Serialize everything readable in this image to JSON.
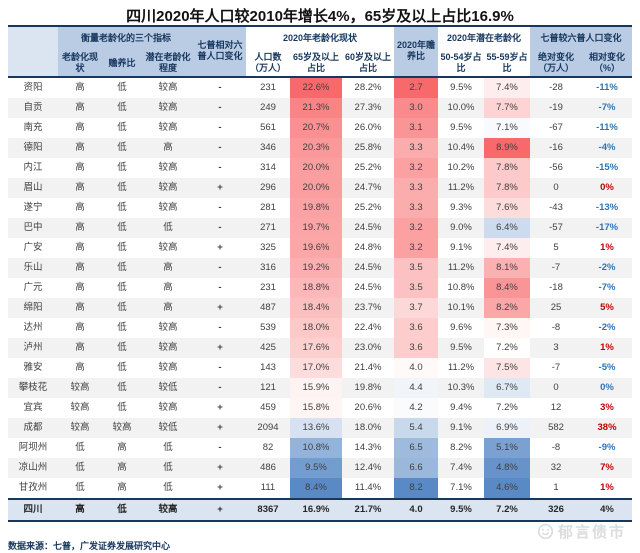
{
  "title": "四川2020年人口较2010年增长4%，65岁及以上占比16.9%",
  "chart_data": {
    "type": "table",
    "title": "四川2020年人口较2010年增长4%，65岁及以上占比16.9%",
    "header": {
      "corner": "",
      "group_indicators": "衡量老龄化的三个指标",
      "col_aging_status": "老龄化现状",
      "col_support_ratio": "赡养比",
      "col_potential_aging": "潜在老龄化程度",
      "col_census_change": "七普相对六普人口变化",
      "group_aging_2020": "2020年老龄化现状",
      "col_population": "人口数（万人）",
      "col_65_plus": "65岁及以上占比",
      "col_60_plus": "60岁及以上占比",
      "col_support_2020": "2020年赡养比",
      "group_potential_2020": "2020年潜在老龄化",
      "col_50_54": "50-54岁占比",
      "col_55_59": "55-59岁占比",
      "group_census_change_2": "七普较六普人口变化",
      "col_abs_change": "绝对变化（万人）",
      "col_rel_change": "相对变化（%）"
    },
    "rows": [
      {
        "name": "资阳",
        "aging": "高",
        "support": "低",
        "potential": "较高",
        "census_change": "-",
        "pop": "231",
        "p65": "22.6%",
        "p60": "28.2%",
        "ratio": "2.7",
        "p50_54": "9.5%",
        "p55_59": "7.4%",
        "abs": "-28",
        "rel": "-11%",
        "rel_color": "blue"
      },
      {
        "name": "自贡",
        "aging": "高",
        "support": "低",
        "potential": "较高",
        "census_change": "-",
        "pop": "249",
        "p65": "21.3%",
        "p60": "27.3%",
        "ratio": "3.0",
        "p50_54": "10.0%",
        "p55_59": "7.7%",
        "abs": "-19",
        "rel": "-7%",
        "rel_color": "blue"
      },
      {
        "name": "南充",
        "aging": "高",
        "support": "低",
        "potential": "较高",
        "census_change": "-",
        "pop": "561",
        "p65": "20.7%",
        "p60": "26.0%",
        "ratio": "3.1",
        "p50_54": "9.5%",
        "p55_59": "7.1%",
        "abs": "-67",
        "rel": "-11%",
        "rel_color": "blue"
      },
      {
        "name": "德阳",
        "aging": "高",
        "support": "低",
        "potential": "高",
        "census_change": "-",
        "pop": "346",
        "p65": "20.3%",
        "p60": "25.8%",
        "ratio": "3.3",
        "p50_54": "10.4%",
        "p55_59": "8.9%",
        "abs": "-16",
        "rel": "-4%",
        "rel_color": "blue"
      },
      {
        "name": "内江",
        "aging": "高",
        "support": "低",
        "potential": "较高",
        "census_change": "-",
        "pop": "314",
        "p65": "20.0%",
        "p60": "25.2%",
        "ratio": "3.2",
        "p50_54": "10.2%",
        "p55_59": "7.8%",
        "abs": "-56",
        "rel": "-15%",
        "rel_color": "blue"
      },
      {
        "name": "眉山",
        "aging": "高",
        "support": "低",
        "potential": "较高",
        "census_change": "+",
        "pop": "296",
        "p65": "20.0%",
        "p60": "24.7%",
        "ratio": "3.3",
        "p50_54": "11.2%",
        "p55_59": "7.8%",
        "abs": "0",
        "rel": "0%",
        "rel_color": "red"
      },
      {
        "name": "遂宁",
        "aging": "高",
        "support": "低",
        "potential": "较高",
        "census_change": "-",
        "pop": "281",
        "p65": "19.8%",
        "p60": "25.2%",
        "ratio": "3.3",
        "p50_54": "9.3%",
        "p55_59": "7.6%",
        "abs": "-43",
        "rel": "-13%",
        "rel_color": "blue"
      },
      {
        "name": "巴中",
        "aging": "高",
        "support": "低",
        "potential": "低",
        "census_change": "-",
        "pop": "271",
        "p65": "19.7%",
        "p60": "24.5%",
        "ratio": "3.2",
        "p50_54": "9.0%",
        "p55_59": "6.4%",
        "abs": "-57",
        "rel": "-17%",
        "rel_color": "blue"
      },
      {
        "name": "广安",
        "aging": "高",
        "support": "低",
        "potential": "较高",
        "census_change": "+",
        "pop": "325",
        "p65": "19.6%",
        "p60": "24.8%",
        "ratio": "3.2",
        "p50_54": "9.1%",
        "p55_59": "7.4%",
        "abs": "5",
        "rel": "1%",
        "rel_color": "red"
      },
      {
        "name": "乐山",
        "aging": "高",
        "support": "低",
        "potential": "高",
        "census_change": "-",
        "pop": "316",
        "p65": "19.2%",
        "p60": "24.5%",
        "ratio": "3.5",
        "p50_54": "11.2%",
        "p55_59": "8.1%",
        "abs": "-7",
        "rel": "-2%",
        "rel_color": "blue"
      },
      {
        "name": "广元",
        "aging": "高",
        "support": "低",
        "potential": "高",
        "census_change": "-",
        "pop": "231",
        "p65": "18.8%",
        "p60": "24.5%",
        "ratio": "3.5",
        "p50_54": "10.8%",
        "p55_59": "8.4%",
        "abs": "-18",
        "rel": "-7%",
        "rel_color": "blue"
      },
      {
        "name": "绵阳",
        "aging": "高",
        "support": "低",
        "potential": "高",
        "census_change": "+",
        "pop": "487",
        "p65": "18.4%",
        "p60": "23.7%",
        "ratio": "3.7",
        "p50_54": "10.1%",
        "p55_59": "8.2%",
        "abs": "25",
        "rel": "5%",
        "rel_color": "red"
      },
      {
        "name": "达州",
        "aging": "高",
        "support": "低",
        "potential": "较高",
        "census_change": "-",
        "pop": "539",
        "p65": "18.0%",
        "p60": "22.4%",
        "ratio": "3.6",
        "p50_54": "9.6%",
        "p55_59": "7.3%",
        "abs": "-8",
        "rel": "-2%",
        "rel_color": "blue"
      },
      {
        "name": "泸州",
        "aging": "高",
        "support": "低",
        "potential": "较高",
        "census_change": "+",
        "pop": "425",
        "p65": "17.6%",
        "p60": "23.0%",
        "ratio": "3.6",
        "p50_54": "9.5%",
        "p55_59": "7.2%",
        "abs": "3",
        "rel": "1%",
        "rel_color": "red"
      },
      {
        "name": "雅安",
        "aging": "高",
        "support": "低",
        "potential": "较高",
        "census_change": "-",
        "pop": "143",
        "p65": "17.0%",
        "p60": "21.4%",
        "ratio": "4.0",
        "p50_54": "11.2%",
        "p55_59": "7.5%",
        "abs": "-7",
        "rel": "-5%",
        "rel_color": "blue"
      },
      {
        "name": "攀枝花",
        "aging": "较高",
        "support": "低",
        "potential": "较低",
        "census_change": "-",
        "pop": "121",
        "p65": "15.9%",
        "p60": "19.8%",
        "ratio": "4.4",
        "p50_54": "10.3%",
        "p55_59": "6.7%",
        "abs": "0",
        "rel": "0%",
        "rel_color": "blue"
      },
      {
        "name": "宜宾",
        "aging": "较高",
        "support": "低",
        "potential": "较高",
        "census_change": "+",
        "pop": "459",
        "p65": "15.8%",
        "p60": "20.6%",
        "ratio": "4.2",
        "p50_54": "9.4%",
        "p55_59": "7.2%",
        "abs": "12",
        "rel": "3%",
        "rel_color": "red"
      },
      {
        "name": "成都",
        "aging": "较高",
        "support": "较高",
        "potential": "较低",
        "census_change": "+",
        "pop": "2094",
        "p65": "13.6%",
        "p60": "18.0%",
        "ratio": "5.4",
        "p50_54": "9.1%",
        "p55_59": "6.9%",
        "abs": "582",
        "rel": "38%",
        "rel_color": "red"
      },
      {
        "name": "阿坝州",
        "aging": "低",
        "support": "高",
        "potential": "低",
        "census_change": "-",
        "pop": "82",
        "p65": "10.8%",
        "p60": "14.3%",
        "ratio": "6.5",
        "p50_54": "8.2%",
        "p55_59": "5.1%",
        "abs": "-8",
        "rel": "-9%",
        "rel_color": "blue"
      },
      {
        "name": "凉山州",
        "aging": "低",
        "support": "高",
        "potential": "低",
        "census_change": "+",
        "pop": "486",
        "p65": "9.5%",
        "p60": "12.4%",
        "ratio": "6.6",
        "p50_54": "7.4%",
        "p55_59": "4.8%",
        "abs": "32",
        "rel": "7%",
        "rel_color": "red"
      },
      {
        "name": "甘孜州",
        "aging": "低",
        "support": "高",
        "potential": "低",
        "census_change": "+",
        "pop": "111",
        "p65": "8.4%",
        "p60": "11.4%",
        "ratio": "8.2",
        "p50_54": "7.1%",
        "p55_59": "4.6%",
        "abs": "1",
        "rel": "1%",
        "rel_color": "red"
      }
    ],
    "total_row": {
      "name": "四川",
      "aging": "高",
      "support": "低",
      "potential": "较高",
      "census_change": "+",
      "pop": "8367",
      "p65": "16.9%",
      "p60": "21.7%",
      "ratio": "4.0",
      "p50_54": "9.5%",
      "p55_59": "7.2%",
      "abs": "326",
      "rel": "4%",
      "rel_color": "dark"
    },
    "color_scales": {
      "p65": {
        "min": 8.4,
        "mid": 15.3,
        "max": 22.6,
        "low_color": "blue",
        "high_color": "red"
      },
      "ratio": {
        "min": 2.7,
        "mid": 4.05,
        "max": 8.2,
        "low_color": "red",
        "high_color": "blue"
      },
      "p55_59": {
        "min": 4.6,
        "mid": 7.2,
        "max": 8.9,
        "low_color": "blue",
        "high_color": "red"
      }
    },
    "scale_colors": {
      "red": "#f8696b",
      "blue": "#5a8ac6"
    }
  },
  "colors": {
    "navy": "#17375e",
    "header_blue": "#b9cce4",
    "header_light": "#dbe5f1",
    "stripe": "#f2f2f2",
    "total_bg": "#dbe5f1",
    "rel_blue": "#2e74b5",
    "rel_red": "#c00000",
    "watermark_gray": "#dcdcdc"
  },
  "footer": {
    "source": "数据来源：七普，广发证券发展研究中心"
  },
  "watermark": {
    "label": "郁言债市"
  }
}
